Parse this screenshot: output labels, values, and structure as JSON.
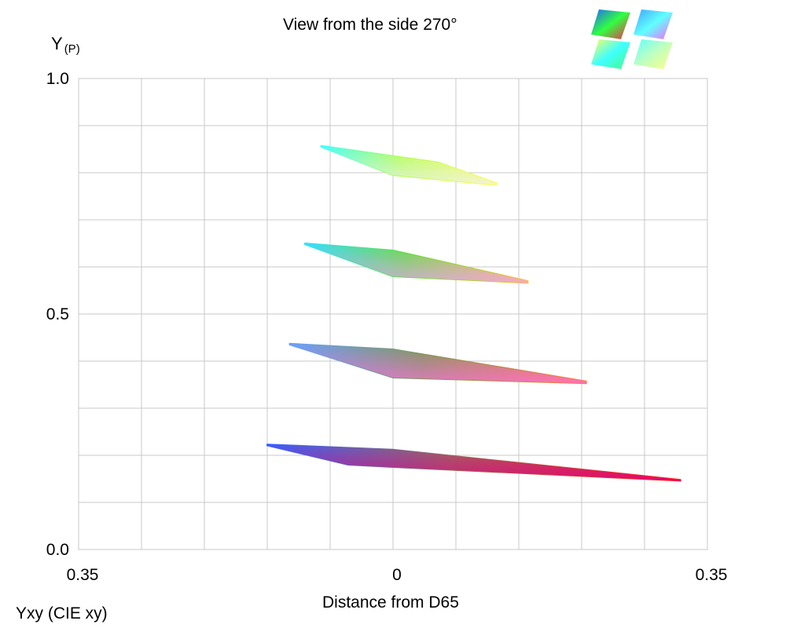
{
  "title": "View from the side 270°",
  "ylabel": "Y",
  "ylabel_sub": "(P)",
  "xlabel": "Distance from D65",
  "footer": "Yxy (CIE xy)",
  "chart_data": {
    "type": "area",
    "title": "View from the side 270°",
    "xlabel": "Distance from D65",
    "ylabel": "Y(P)",
    "xlim": [
      -0.35,
      0.35
    ],
    "ylim": [
      0.0,
      1.0
    ],
    "grid": true,
    "x_tick_labels": [
      "0.35",
      "0",
      "0.35"
    ],
    "x_tick_values": [
      -0.35,
      0,
      0.35
    ],
    "y_tick_labels": [
      "0.0",
      "0.5",
      "1.0"
    ],
    "y_tick_values": [
      0.0,
      0.5,
      1.0
    ],
    "series": [
      {
        "name": "slice-Y-0.20",
        "colors": [
          "#3a5cff",
          "#9a6a5a",
          "#e0008a",
          "#ff1a1a"
        ],
        "top": [
          {
            "x": -0.14,
            "y": 0.223
          },
          {
            "x": 0.0,
            "y": 0.212
          },
          {
            "x": 0.32,
            "y": 0.148
          }
        ],
        "bottom": [
          {
            "x": -0.14,
            "y": 0.221
          },
          {
            "x": -0.05,
            "y": 0.18
          },
          {
            "x": 0.0,
            "y": 0.175
          },
          {
            "x": 0.32,
            "y": 0.146
          }
        ]
      },
      {
        "name": "slice-Y-0.40",
        "colors": [
          "#6aa0ff",
          "#7a9a55",
          "#ff70e0",
          "#ff7a30"
        ],
        "top": [
          {
            "x": -0.115,
            "y": 0.437
          },
          {
            "x": 0.0,
            "y": 0.425
          },
          {
            "x": 0.215,
            "y": 0.357
          }
        ],
        "bottom": [
          {
            "x": -0.115,
            "y": 0.435
          },
          {
            "x": 0.0,
            "y": 0.365
          },
          {
            "x": 0.215,
            "y": 0.353
          }
        ]
      },
      {
        "name": "slice-Y-0.60",
        "colors": [
          "#30e0ff",
          "#60e040",
          "#f0a0ff",
          "#ffc030"
        ],
        "top": [
          {
            "x": -0.098,
            "y": 0.65
          },
          {
            "x": 0.0,
            "y": 0.635
          },
          {
            "x": 0.15,
            "y": 0.57
          }
        ],
        "bottom": [
          {
            "x": -0.098,
            "y": 0.648
          },
          {
            "x": 0.0,
            "y": 0.58
          },
          {
            "x": 0.15,
            "y": 0.566
          }
        ]
      },
      {
        "name": "slice-Y-0.80",
        "colors": [
          "#40ffff",
          "#b0ff50",
          "#f0f0ff",
          "#ffff40"
        ],
        "top": [
          {
            "x": -0.08,
            "y": 0.857
          },
          {
            "x": 0.05,
            "y": 0.822
          },
          {
            "x": 0.115,
            "y": 0.778
          }
        ],
        "bottom": [
          {
            "x": -0.08,
            "y": 0.855
          },
          {
            "x": 0.0,
            "y": 0.795
          },
          {
            "x": 0.115,
            "y": 0.774
          }
        ]
      }
    ]
  },
  "thumbnails": [
    {
      "name": "thumbnail-top-left",
      "colors": [
        "#ff2050",
        "#2060ff",
        "#30ff40"
      ]
    },
    {
      "name": "thumbnail-top-right",
      "colors": [
        "#ff60ff",
        "#40a0ff",
        "#60ffff"
      ]
    },
    {
      "name": "thumbnail-bottom-left",
      "colors": [
        "#40ff80",
        "#ffff60",
        "#40ffff"
      ]
    },
    {
      "name": "thumbnail-bottom-right",
      "colors": [
        "#ffff80",
        "#60ffff",
        "#c0ffc0"
      ]
    }
  ]
}
